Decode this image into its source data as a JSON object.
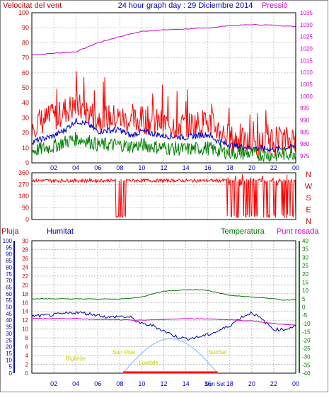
{
  "chart_data": [
    {
      "type": "line",
      "title": "24 hour graph day : 29 Diciembre 2014",
      "left_label": "Velocitat del vent",
      "right_label": "Pressió",
      "x_ticks": [
        "02",
        "04",
        "06",
        "08",
        "10",
        "12",
        "14",
        "16",
        "18",
        "20",
        "22",
        "00"
      ],
      "y_left_ticks": [
        0,
        10,
        20,
        30,
        40,
        50,
        60,
        70,
        80,
        90,
        100
      ],
      "y_left_range": [
        0,
        100
      ],
      "y_right_ticks": [
        975,
        980,
        985,
        990,
        995,
        1000,
        1005,
        1010,
        1015,
        1020,
        1025,
        1030,
        1035
      ],
      "y_right_range": [
        972,
        1035
      ],
      "grid": true,
      "colors": {
        "gust": "#ff0000",
        "avg": "#0000cc",
        "min": "#008000",
        "pressure": "#cc00cc",
        "left_axis": "#cc0000",
        "right_axis": "#cc00cc",
        "title": "#0000cc"
      },
      "series": [
        {
          "color_key": "pressure",
          "axis": "right",
          "points": [
            [
              0,
              1017.3
            ],
            [
              2,
              1018
            ],
            [
              4,
              1018.6
            ],
            [
              6,
              1022.4
            ],
            [
              8,
              1025
            ],
            [
              10,
              1027.2
            ],
            [
              12,
              1027.8
            ],
            [
              14,
              1028.2
            ],
            [
              16,
              1028.6
            ],
            [
              18,
              1029.6
            ],
            [
              20,
              1030
            ],
            [
              22,
              1029.8
            ],
            [
              24,
              1029.2
            ]
          ]
        },
        {
          "color_key": "gust",
          "axis": "left",
          "noisy": true,
          "points": [
            [
              0,
              26
            ],
            [
              2,
              30
            ],
            [
              3,
              35
            ],
            [
              4,
              38
            ],
            [
              5,
              34
            ],
            [
              6,
              30
            ],
            [
              8,
              30
            ],
            [
              9,
              27
            ],
            [
              10,
              29
            ],
            [
              12,
              26
            ],
            [
              14,
              25
            ],
            [
              16,
              27
            ],
            [
              17,
              22
            ],
            [
              18,
              16
            ],
            [
              20,
              12
            ],
            [
              22,
              14
            ],
            [
              24,
              16
            ]
          ]
        },
        {
          "color_key": "avg",
          "axis": "left",
          "noisy": true,
          "points": [
            [
              0,
              14
            ],
            [
              2,
              18
            ],
            [
              3,
              22
            ],
            [
              4,
              28
            ],
            [
              5,
              26
            ],
            [
              6,
              21
            ],
            [
              8,
              22
            ],
            [
              9,
              18
            ],
            [
              10,
              21
            ],
            [
              12,
              18
            ],
            [
              14,
              17
            ],
            [
              16,
              19
            ],
            [
              17,
              14
            ],
            [
              18,
              12
            ],
            [
              20,
              10
            ],
            [
              22,
              9
            ],
            [
              24,
              11
            ]
          ]
        },
        {
          "color_key": "min",
          "axis": "left",
          "noisy": true,
          "points": [
            [
              0,
              8
            ],
            [
              2,
              11
            ],
            [
              3,
              14
            ],
            [
              4,
              16
            ],
            [
              5,
              15
            ],
            [
              6,
              12
            ],
            [
              8,
              12
            ],
            [
              9,
              11
            ],
            [
              10,
              12
            ],
            [
              12,
              10
            ],
            [
              14,
              9
            ],
            [
              16,
              10
            ],
            [
              17,
              8
            ],
            [
              18,
              7
            ],
            [
              20,
              6
            ],
            [
              22,
              5
            ],
            [
              24,
              7
            ]
          ]
        }
      ]
    },
    {
      "type": "line",
      "title": "",
      "y_ticks": [
        0,
        90,
        180,
        270,
        360
      ],
      "y_range": [
        0,
        360
      ],
      "right_letters": [
        "N",
        "W",
        "S",
        "E",
        "N"
      ],
      "colors": {
        "direction": "#ff0000",
        "letters": "#cc0000"
      },
      "description_series": "Wind direction (degrees)",
      "base_direction": 300
    },
    {
      "type": "line",
      "labels": {
        "rain": "Pluja",
        "humidity": "Humitat",
        "temperature": "Temperatura",
        "dewpoint": "Punt rosada"
      },
      "y_blue_ticks": [
        0,
        5,
        10,
        15,
        20,
        25,
        30,
        35,
        40,
        45,
        50,
        55,
        60,
        65,
        70,
        75,
        80,
        85,
        90,
        95,
        100
      ],
      "y_red_ticks": [
        0,
        2,
        4,
        6,
        8,
        10,
        12,
        14,
        16,
        18,
        20,
        22,
        24,
        26,
        28,
        30
      ],
      "y_right_ticks": [
        40,
        35,
        30,
        25,
        20,
        15,
        10,
        5,
        0,
        -5,
        -10,
        -15,
        -20,
        -25,
        -30,
        -35,
        -40
      ],
      "y_right_range": [
        -40,
        40
      ],
      "colors": {
        "rain": "#cc0000",
        "humidity": "#0000aa",
        "temperature": "#007700",
        "dewpoint": "#cc00cc",
        "arc": "#aaccee",
        "sun_text": "#cccc00",
        "grid": "#bbbbbb"
      },
      "series": [
        {
          "color_key": "temperature",
          "axis": "right",
          "points": [
            [
              0,
              5
            ],
            [
              6,
              4.8
            ],
            [
              8,
              4.8
            ],
            [
              10,
              6
            ],
            [
              11,
              8
            ],
            [
              12,
              9.5
            ],
            [
              13,
              10
            ],
            [
              15,
              10.5
            ],
            [
              16,
              10
            ],
            [
              17,
              8.5
            ],
            [
              18,
              7
            ],
            [
              20,
              6
            ],
            [
              22,
              5
            ],
            [
              23,
              4
            ],
            [
              24,
              4.5
            ]
          ]
        },
        {
          "color_key": "humidity",
          "axis": "blue",
          "points": [
            [
              0,
              43
            ],
            [
              2,
              44
            ],
            [
              4,
              46
            ],
            [
              5,
              45
            ],
            [
              6,
              44
            ],
            [
              7,
              42
            ],
            [
              8,
              43
            ],
            [
              9,
              42
            ],
            [
              10,
              37
            ],
            [
              11,
              36
            ],
            [
              12,
              32
            ],
            [
              13,
              28
            ],
            [
              14,
              26
            ],
            [
              15,
              27
            ],
            [
              16,
              29
            ],
            [
              17,
              32
            ],
            [
              18,
              36
            ],
            [
              19,
              42
            ],
            [
              20,
              46
            ],
            [
              21,
              40
            ],
            [
              22,
              33
            ],
            [
              23,
              33
            ],
            [
              24,
              36
            ]
          ]
        },
        {
          "color_key": "dewpoint",
          "axis": "right",
          "points": [
            [
              0,
              -7
            ],
            [
              4,
              -7
            ],
            [
              6,
              -7.5
            ],
            [
              8,
              -7.8
            ],
            [
              10,
              -8
            ],
            [
              12,
              -7.5
            ],
            [
              14,
              -7
            ],
            [
              16,
              -7.2
            ],
            [
              18,
              -7.8
            ],
            [
              20,
              -8.5
            ],
            [
              22,
              -10
            ],
            [
              24,
              -11
            ]
          ]
        }
      ],
      "sun": {
        "sunrise_label": "Sun Rise",
        "sunset_label": "SunSet",
        "sunrise_hour": 8.3,
        "sunset_hour": 16.9,
        "sunrise_label2": "Sun Set",
        "solar_peak_blue": 26
      },
      "bigliquet_label": "Bigliede",
      "lowtide_label": "Lowtide"
    }
  ]
}
